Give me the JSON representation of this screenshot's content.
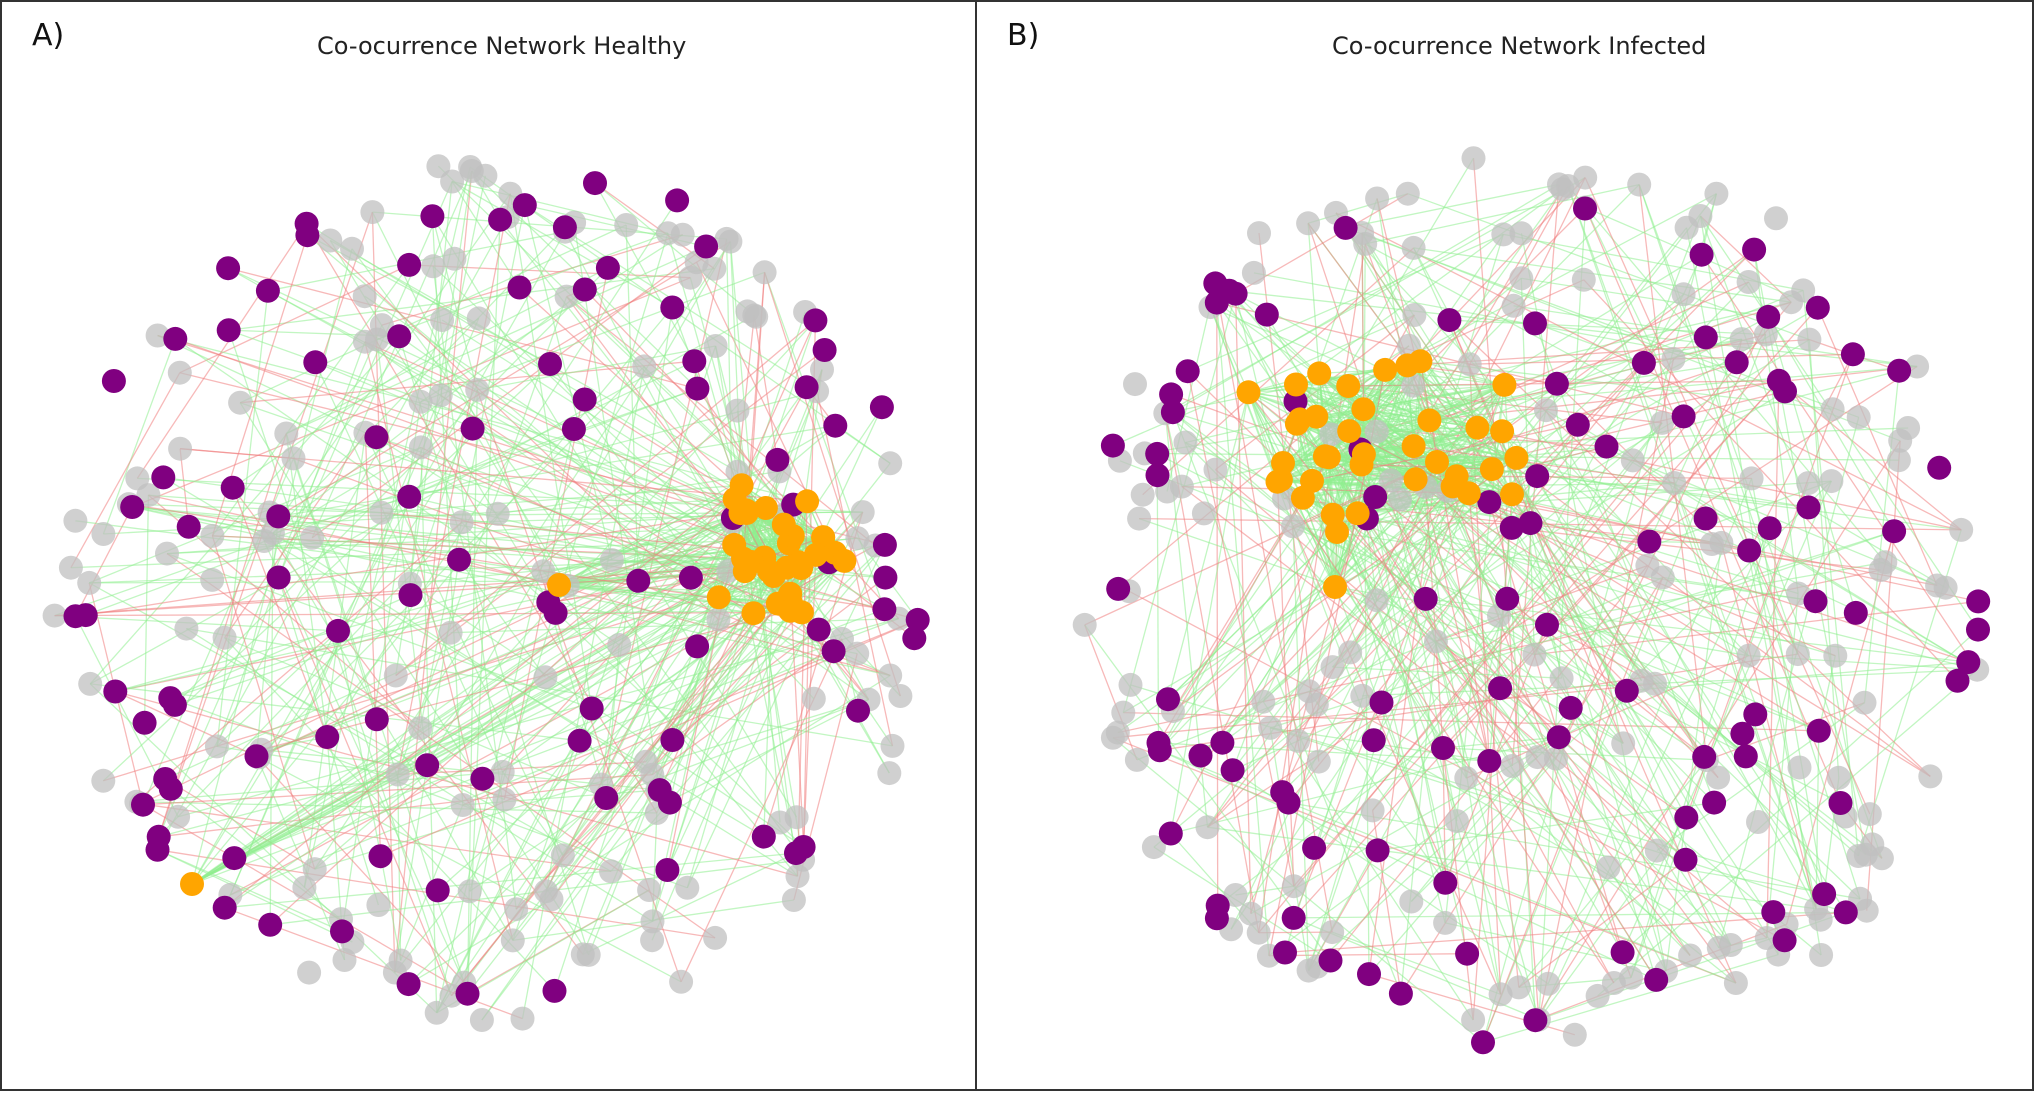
{
  "figure": {
    "panels": [
      {
        "letter": "A)",
        "title": "Co-ocurrence Network Healthy"
      },
      {
        "letter": "B)",
        "title": "Co-ocurrence Network Infected"
      }
    ]
  },
  "colors": {
    "core_node": "#FFA500",
    "hub_node": "#800080",
    "other_node": "#C0C0C0",
    "positive_edge": "#90EE90",
    "negative_edge": "#F08080"
  },
  "legend_note": ""
}
